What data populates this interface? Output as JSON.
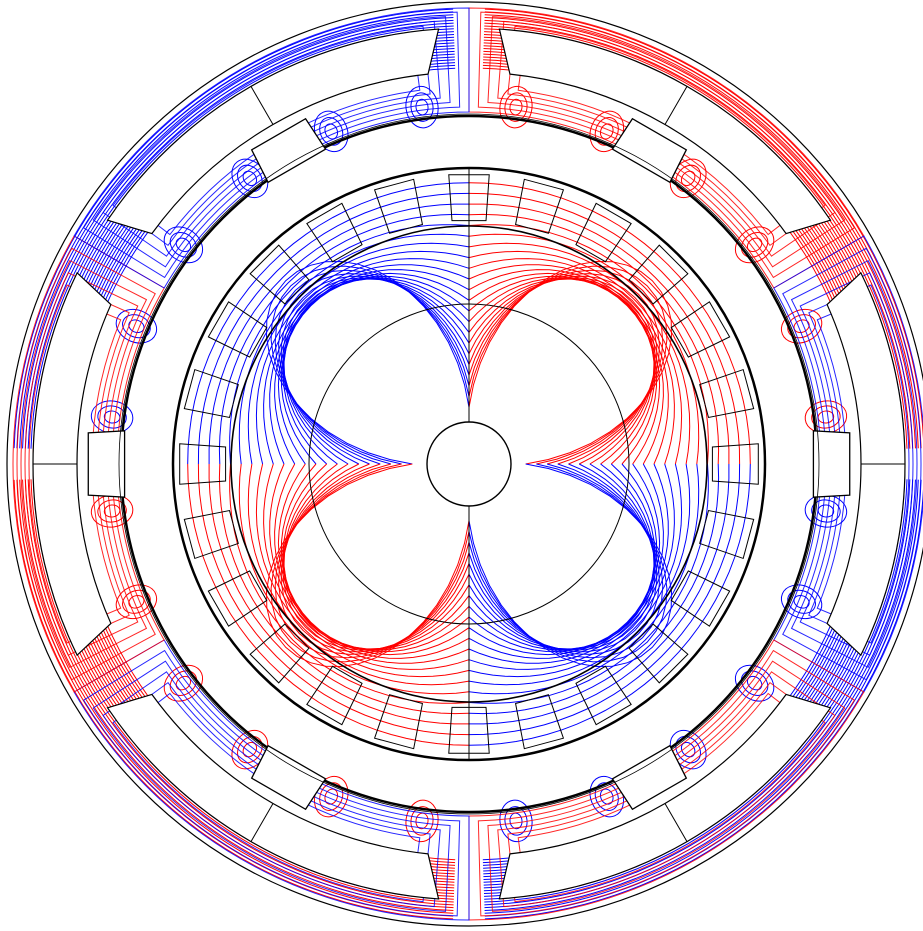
{
  "figure": {
    "kind": "electric machine cross-section with magnetic flux lines",
    "colors": {
      "background": "#ffffff",
      "outline": "#000000",
      "flux_positive": "#ff0000",
      "flux_negative": "#0000ff"
    },
    "stator": {
      "slots": 6,
      "pole_windows": 6,
      "window_angles_deg": [
        60,
        0,
        300,
        240,
        180,
        120
      ]
    },
    "rotor": {
      "teeth": 24,
      "pole_pairs": 2,
      "quadrant_polarity": [
        "blue",
        "red",
        "blue",
        "red"
      ]
    },
    "flux_lines": {
      "per_half": 22
    }
  }
}
